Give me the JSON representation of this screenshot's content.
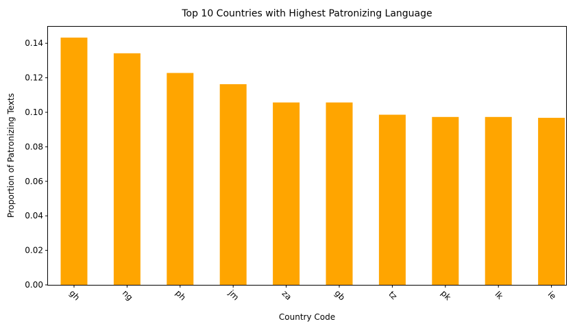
{
  "chart_data": {
    "type": "bar",
    "title": "Top 10 Countries with Highest Patronizing Language",
    "xlabel": "Country Code",
    "ylabel": "Proportion of Patronizing Texts",
    "categories": [
      "gh",
      "ng",
      "ph",
      "jm",
      "za",
      "gb",
      "tz",
      "pk",
      "lk",
      "ie"
    ],
    "values": [
      0.1433,
      0.1342,
      0.1228,
      0.1163,
      0.1057,
      0.1057,
      0.0986,
      0.0973,
      0.0973,
      0.0968
    ],
    "ylim": [
      0,
      0.15
    ],
    "yticks": [
      "0.00",
      "0.02",
      "0.04",
      "0.06",
      "0.08",
      "0.10",
      "0.12",
      "0.14"
    ],
    "bar_color": "#ffa500",
    "grid": false,
    "legend": false
  }
}
